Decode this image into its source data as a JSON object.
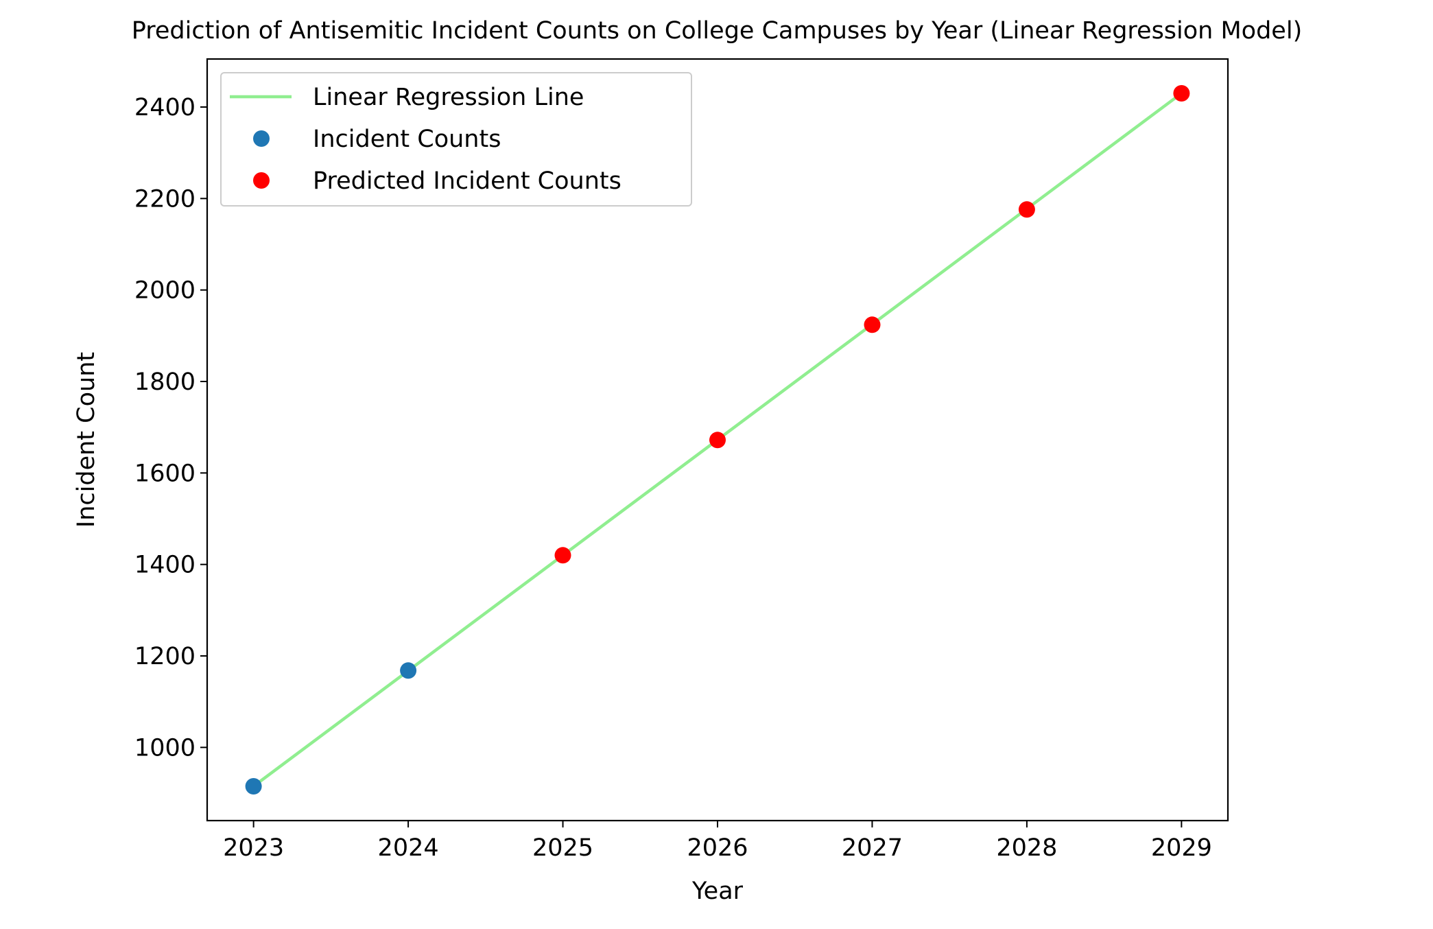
{
  "chart_data": {
    "type": "line",
    "title": "Prediction of Antisemitic Incident Counts on College Campuses by Year (Linear Regression Model)",
    "xlabel": "Year",
    "ylabel": "Incident Count",
    "xlim": [
      2022.7,
      2029.3
    ],
    "ylim": [
      840,
      2505
    ],
    "xticks": [
      2023,
      2024,
      2025,
      2026,
      2027,
      2028,
      2029
    ],
    "yticks": [
      1000,
      1200,
      1400,
      1600,
      1800,
      2000,
      2200,
      2400
    ],
    "grid": false,
    "legend_position": "upper-left",
    "series": [
      {
        "name": "Linear Regression Line",
        "kind": "line",
        "color": "#90ee90",
        "x": [
          2023,
          2029
        ],
        "y": [
          915,
          2430
        ]
      },
      {
        "name": "Incident Counts",
        "kind": "marker",
        "color": "#1f77b4",
        "x": [
          2023,
          2024
        ],
        "y": [
          915,
          1168
        ]
      },
      {
        "name": "Predicted Incident Counts",
        "kind": "marker",
        "color": "#ff0000",
        "x": [
          2025,
          2026,
          2027,
          2028,
          2029
        ],
        "y": [
          1420,
          1672,
          1924,
          2176,
          2430
        ]
      }
    ]
  }
}
